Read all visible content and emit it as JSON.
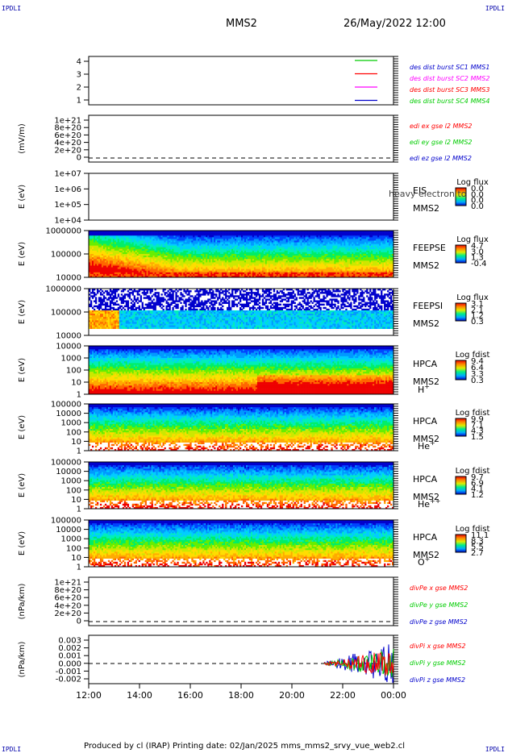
{
  "header": {
    "corner_label": "IPDLI",
    "spacecraft": "MMS2",
    "datetime": "26/May/2022 12:00"
  },
  "footer": {
    "text": "Produced by cl (IRAP)   Printing date: 02/Jan/2025   mms_mms2_srvy_vue_web2.cl"
  },
  "colors": {
    "red": "#ff0000",
    "green": "#00cc00",
    "blue": "#0000cc",
    "magenta": "#ff00ff",
    "frame": "#000000"
  },
  "chart_data": [
    {
      "id": "dist",
      "type": "line",
      "ylabel": "",
      "yticks": [
        "4",
        "3",
        "2",
        "1"
      ],
      "legend": [
        {
          "text": "des dist burst SC1 MMS1",
          "color": "#0000cc"
        },
        {
          "text": "des dist burst SC2 MMS2",
          "color": "#ff00ff"
        },
        {
          "text": "des dist burst SC3 MMS3",
          "color": "#ff0000"
        },
        {
          "text": "des dist burst SC4 MMS4",
          "color": "#00cc00"
        }
      ]
    },
    {
      "id": "edi",
      "type": "line",
      "ylabel": "(mV/m)",
      "yticks": [
        "1e+21",
        "8e+20",
        "6e+20",
        "4e+20",
        "2e+20",
        "0"
      ],
      "legend": [
        {
          "text": "edi ex gse l2 MMS2",
          "color": "#ff0000"
        },
        {
          "text": "edi ey gse l2 MMS2",
          "color": "#00cc00"
        },
        {
          "text": "edi ez gse l2 MMS2",
          "color": "#0000cc"
        }
      ]
    },
    {
      "id": "eis",
      "type": "heatmap",
      "ylabel": "E (eV)",
      "yticks": [
        "1e+07",
        "1e+06",
        "1e+05",
        "1e+04"
      ],
      "instrument": "EIS",
      "spacecraft": "MMS2",
      "overlay_text": "heavy electron to",
      "colorbar_title": "Log flux",
      "colorbar_ticks": [
        "0.0",
        "0.0",
        "0.0",
        "0.0"
      ]
    },
    {
      "id": "feepse",
      "type": "heatmap",
      "ylabel": "E (eV)",
      "yticks": [
        "1000000",
        "100000",
        "10000"
      ],
      "instrument": "FEEPSE",
      "spacecraft": "MMS2",
      "colorbar_title": "Log flux",
      "colorbar_ticks": [
        "4.7",
        "3.0",
        "1.3",
        "-0.4"
      ]
    },
    {
      "id": "feepsi",
      "type": "heatmap",
      "ylabel": "E (eV)",
      "yticks": [
        "1000000",
        "100000",
        "10000"
      ],
      "instrument": "FEEPSI",
      "spacecraft": "MMS2",
      "colorbar_title": "Log flux",
      "colorbar_ticks": [
        "3.1",
        "2.1",
        "1.2",
        "0.3"
      ]
    },
    {
      "id": "hpca_h",
      "type": "heatmap",
      "ylabel": "E (eV)",
      "yticks": [
        "10000",
        "1000",
        "100",
        "10",
        "1"
      ],
      "instrument": "HPCA",
      "spacecraft": "MMS2",
      "species": "H",
      "species_sup": "+",
      "colorbar_title": "Log fdist",
      "colorbar_ticks": [
        "9.4",
        "6.4",
        "3.3",
        "0.3"
      ]
    },
    {
      "id": "hpca_he1",
      "type": "heatmap",
      "ylabel": "E (eV)",
      "yticks": [
        "100000",
        "10000",
        "1000",
        "100",
        "10",
        "1"
      ],
      "instrument": "HPCA",
      "spacecraft": "MMS2",
      "species": "He",
      "species_sup": "+",
      "colorbar_title": "Log fdist",
      "colorbar_ticks": [
        "9.9",
        "7.1",
        "4.3",
        "1.5"
      ]
    },
    {
      "id": "hpca_he2",
      "type": "heatmap",
      "ylabel": "E (eV)",
      "yticks": [
        "100000",
        "10000",
        "1000",
        "100",
        "10",
        "1"
      ],
      "instrument": "HPCA",
      "spacecraft": "MMS2",
      "species": "He",
      "species_sup": "++",
      "colorbar_title": "Log fdist",
      "colorbar_ticks": [
        "9.7",
        "6.9",
        "4.1",
        "1.2"
      ]
    },
    {
      "id": "hpca_o",
      "type": "heatmap",
      "ylabel": "E (eV)",
      "yticks": [
        "100000",
        "10000",
        "1000",
        "100",
        "10",
        "1"
      ],
      "instrument": "HPCA",
      "spacecraft": "MMS2",
      "species": "O",
      "species_sup": "+",
      "colorbar_title": "Log fdist",
      "colorbar_ticks": [
        "11.1",
        "8.3",
        "5.5",
        "2.7"
      ]
    },
    {
      "id": "divpe",
      "type": "line",
      "ylabel": "(nPa/km)",
      "yticks": [
        "1e+21",
        "8e+20",
        "6e+20",
        "4e+20",
        "2e+20",
        "0"
      ],
      "legend": [
        {
          "text": "divPe x gse MMS2",
          "color": "#ff0000"
        },
        {
          "text": "divPe y gse MMS2",
          "color": "#00cc00"
        },
        {
          "text": "divPe z gse MMS2",
          "color": "#0000cc"
        }
      ]
    },
    {
      "id": "divpi",
      "type": "line",
      "ylabel": "(nPa/km)",
      "yticks": [
        "0.003",
        "0.002",
        "0.001",
        "0.000",
        "-0.001",
        "-0.002"
      ],
      "legend": [
        {
          "text": "divPi x gse MMS2",
          "color": "#ff0000"
        },
        {
          "text": "divPi y gse MMS2",
          "color": "#00cc00"
        },
        {
          "text": "divPi z gse MMS2",
          "color": "#0000cc"
        }
      ]
    }
  ],
  "xaxis": {
    "ticks": [
      "12:00",
      "14:00",
      "16:00",
      "18:00",
      "20:00",
      "22:00",
      "00:00"
    ]
  }
}
